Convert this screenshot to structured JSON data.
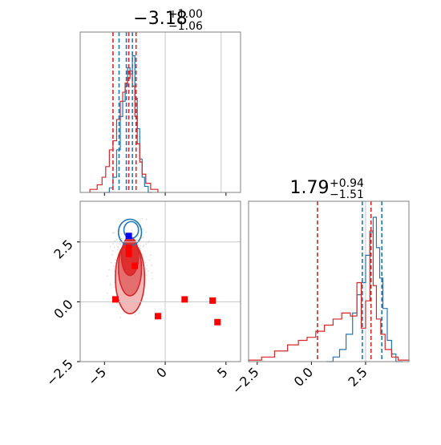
{
  "chart_data": [
    {
      "panel": "param1-marginal",
      "type": "histogram",
      "title": {
        "main": "−3.18",
        "sup": "+1.00",
        "sub": "−1.06"
      },
      "xlim": [
        -7,
        6.2
      ],
      "xticks": [
        -5,
        0,
        5
      ],
      "series": [
        {
          "color": "#1f77b4",
          "bins": [
            -4.9,
            -4.6,
            -4.3,
            -4.0,
            -3.7,
            -3.5,
            -3.3,
            -3.1,
            -2.9,
            -2.7,
            -2.5,
            -2.3,
            -2.1,
            -1.9,
            -1.7,
            -1.4,
            -1.1
          ],
          "heights": [
            0.0,
            0.03,
            0.1,
            0.28,
            0.5,
            0.6,
            0.7,
            0.82,
            0.78,
            0.9,
            0.62,
            0.42,
            0.22,
            0.1,
            0.04,
            0.0
          ]
        },
        {
          "color": "#d62728",
          "bins": [
            -6.2,
            -5.6,
            -5.2,
            -4.9,
            -4.6,
            -4.3,
            -4.0,
            -3.7,
            -3.5,
            -3.3,
            -3.1,
            -2.9,
            -2.7,
            -2.5,
            -2.3,
            -2.1,
            -1.9,
            -1.6,
            -1.2,
            -0.6
          ],
          "heights": [
            0.02,
            0.05,
            0.1,
            0.17,
            0.28,
            0.34,
            0.48,
            0.6,
            0.66,
            0.72,
            0.75,
            0.8,
            0.7,
            0.5,
            0.32,
            0.2,
            0.12,
            0.06,
            0.02
          ]
        }
      ],
      "quantile_lines": [
        {
          "color": "#d62728",
          "values": [
            -4.3,
            -3.0,
            -2.4
          ]
        },
        {
          "color": "#1f77b4",
          "values": [
            -3.8,
            -3.2,
            -2.7
          ]
        }
      ],
      "reference_lines": [
        0,
        4.6
      ],
      "yaxis_labels": "none"
    },
    {
      "panel": "joint-2d",
      "type": "scatter",
      "xlim": [
        -7,
        6.2
      ],
      "ylim": [
        -2.5,
        4.2
      ],
      "xticks": [
        -5,
        0,
        5
      ],
      "xtick_labels": [
        "−5",
        "0",
        "5"
      ],
      "yticks": [
        -2.5,
        0.0,
        2.5
      ],
      "ytick_labels": [
        "−2.5",
        "0.0",
        "2.5"
      ],
      "reference_lines": {
        "x": 0,
        "y": [
          0,
          2.5
        ]
      },
      "markers": [
        {
          "x": -3.0,
          "y": 2.75,
          "color": "#0000ff",
          "shape": "square"
        },
        {
          "x": -3.0,
          "y": 2.25,
          "color": "#ff0000",
          "shape": "square"
        },
        {
          "x": -3.0,
          "y": 2.0,
          "color": "#ff0000",
          "shape": "square"
        },
        {
          "x": -2.5,
          "y": 1.5,
          "color": "#ff0000",
          "shape": "square"
        },
        {
          "x": -4.1,
          "y": 0.1,
          "color": "#ff0000",
          "shape": "square"
        },
        {
          "x": -0.6,
          "y": -0.6,
          "color": "#ff0000",
          "shape": "square"
        },
        {
          "x": 1.6,
          "y": 0.1,
          "color": "#ff0000",
          "shape": "square"
        },
        {
          "x": 3.9,
          "y": 0.05,
          "color": "#ff0000",
          "shape": "square"
        },
        {
          "x": 4.3,
          "y": -0.85,
          "color": "#ff0000",
          "shape": "square"
        }
      ],
      "contours": [
        {
          "color": "#d62728",
          "fill": "#f3b3b3",
          "center": [
            -2.9,
            1.0
          ],
          "radius": [
            2.4,
            3.0
          ]
        },
        {
          "color": "#d62728",
          "fill": "#e36a6a",
          "center": [
            -2.9,
            1.4
          ],
          "radius": [
            1.9,
            2.3
          ]
        },
        {
          "color": "#d62728",
          "fill": "#dd2a2a",
          "center": [
            -2.9,
            1.9
          ],
          "radius": [
            1.4,
            1.6
          ]
        },
        {
          "color": "#1f77b4",
          "fill": "none",
          "center": [
            -2.9,
            2.9
          ],
          "radius": [
            1.9,
            1.1
          ]
        },
        {
          "color": "#1f77b4",
          "fill": "none",
          "center": [
            -2.8,
            3.0
          ],
          "radius": [
            1.2,
            0.7
          ]
        }
      ]
    },
    {
      "panel": "param2-marginal",
      "type": "histogram",
      "title": {
        "main": "1.79",
        "sup": "+0.94",
        "sub": "−1.51"
      },
      "xlim": [
        -2.9,
        4.5
      ],
      "xticks": [
        -2.5,
        0.0,
        2.5
      ],
      "xtick_labels": [
        "−2.5",
        "0.0",
        "2.5"
      ],
      "series": [
        {
          "color": "#1f77b4",
          "bins": [
            0.7,
            1.0,
            1.3,
            1.6,
            1.9,
            2.1,
            2.3,
            2.5,
            2.7,
            2.85,
            3.0,
            3.15,
            3.3,
            3.5,
            3.7,
            3.9,
            4.2
          ],
          "heights": [
            0.0,
            0.03,
            0.08,
            0.18,
            0.32,
            0.44,
            0.52,
            0.7,
            0.85,
            0.95,
            0.75,
            0.55,
            0.35,
            0.14,
            0.05,
            0.0
          ]
        },
        {
          "color": "#d62728",
          "bins": [
            -2.9,
            -2.3,
            -1.7,
            -1.1,
            -0.6,
            -0.2,
            0.2,
            0.6,
            1.0,
            1.4,
            1.8,
            2.1,
            2.3,
            2.5,
            2.7,
            2.85,
            3.0,
            3.2,
            3.4,
            3.7,
            4.0,
            4.5
          ],
          "heights": [
            0.01,
            0.03,
            0.07,
            0.11,
            0.14,
            0.16,
            0.2,
            0.24,
            0.28,
            0.32,
            0.3,
            0.52,
            0.22,
            0.4,
            0.86,
            0.5,
            0.28,
            0.18,
            0.08,
            0.03,
            0.01
          ]
        }
      ],
      "quantile_lines": [
        {
          "color": "#d62728",
          "values": [
            0.28,
            2.75
          ]
        },
        {
          "color": "#1f77b4",
          "values": [
            2.35,
            3.25
          ]
        }
      ],
      "reference_lines": [
        2.5
      ],
      "yaxis_labels": "none"
    }
  ]
}
